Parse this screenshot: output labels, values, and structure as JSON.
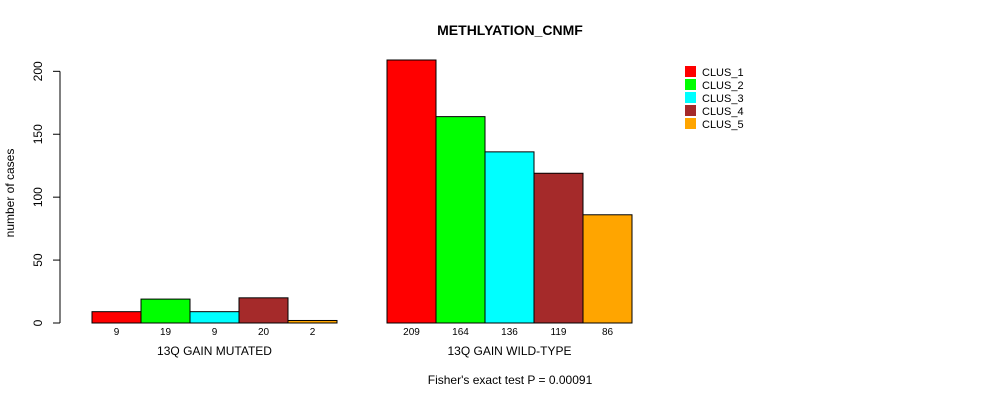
{
  "chart_data": {
    "type": "bar",
    "title": "METHLYATION_CNMF",
    "ylabel": "number of cases",
    "xlabel": "",
    "ylim": [
      0,
      209
    ],
    "yticks": [
      0,
      50,
      100,
      150,
      200
    ],
    "groups": [
      "13Q GAIN MUTATED",
      "13Q GAIN WILD-TYPE"
    ],
    "series": [
      {
        "name": "CLUS_1",
        "color": "#ff0000",
        "values": [
          9,
          209
        ]
      },
      {
        "name": "CLUS_2",
        "color": "#00ff00",
        "values": [
          19,
          164
        ]
      },
      {
        "name": "CLUS_3",
        "color": "#00ffff",
        "values": [
          9,
          136
        ]
      },
      {
        "name": "CLUS_4",
        "color": "#a52a2a",
        "values": [
          20,
          119
        ]
      },
      {
        "name": "CLUS_5",
        "color": "#ffa500",
        "values": [
          2,
          86
        ]
      }
    ],
    "legend_position": "top-right",
    "footer": "Fisher's exact test P = 0.00091"
  }
}
